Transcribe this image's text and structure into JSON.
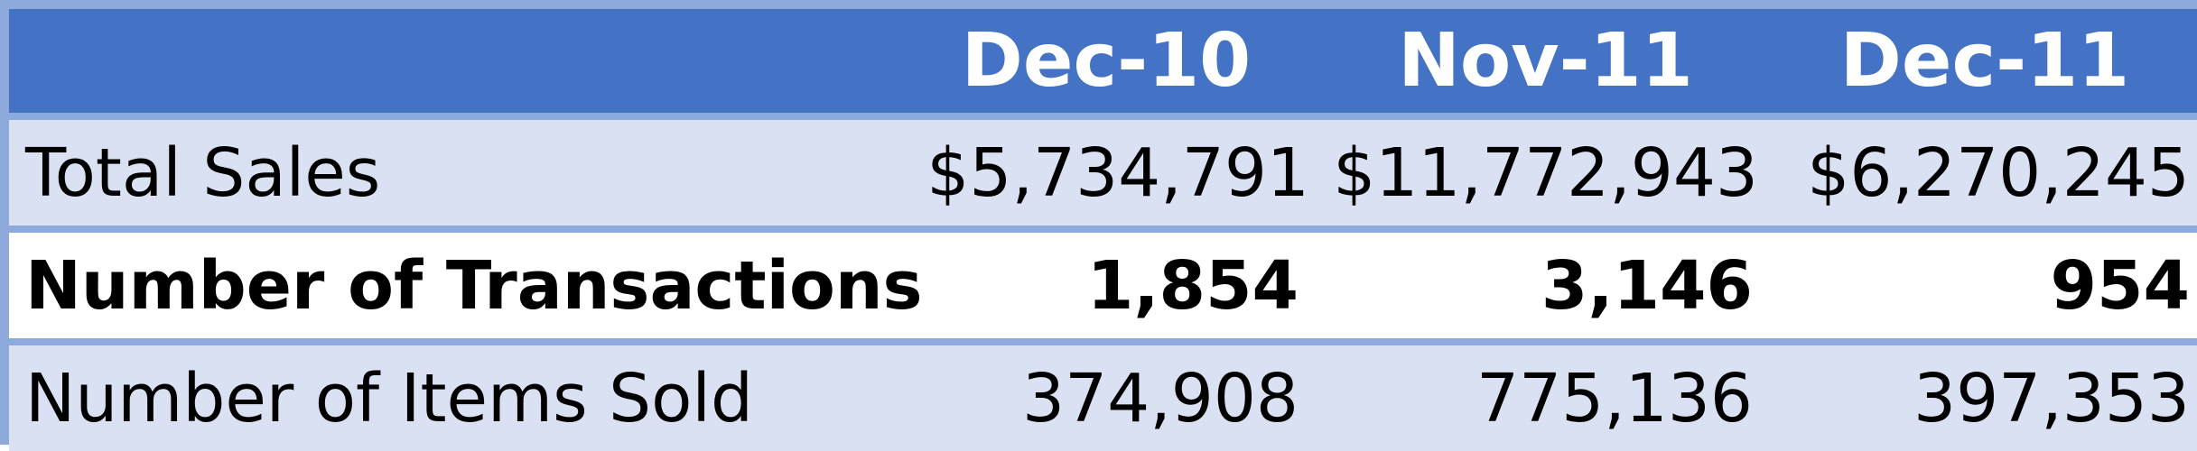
{
  "table": {
    "columns": [
      "",
      "Dec-10",
      "Nov-11",
      "Dec-11"
    ],
    "rows": [
      {
        "label": "Total Sales",
        "values": [
          "$5,734,791",
          "$11,772,943",
          "$6,270,245"
        ]
      },
      {
        "label": "Number of Transactions",
        "values": [
          "1,854",
          "3,146",
          "954"
        ]
      },
      {
        "label": "Number of Items Sold",
        "values": [
          "374,908",
          "775,136",
          "397,353"
        ]
      }
    ]
  },
  "colors": {
    "header_bg": "#4472C4",
    "header_text": "#FFFFFF",
    "band_bg": "#D9E1F2",
    "border": "#8EA9DB",
    "row_bg_alt": "#FFFFFF"
  }
}
